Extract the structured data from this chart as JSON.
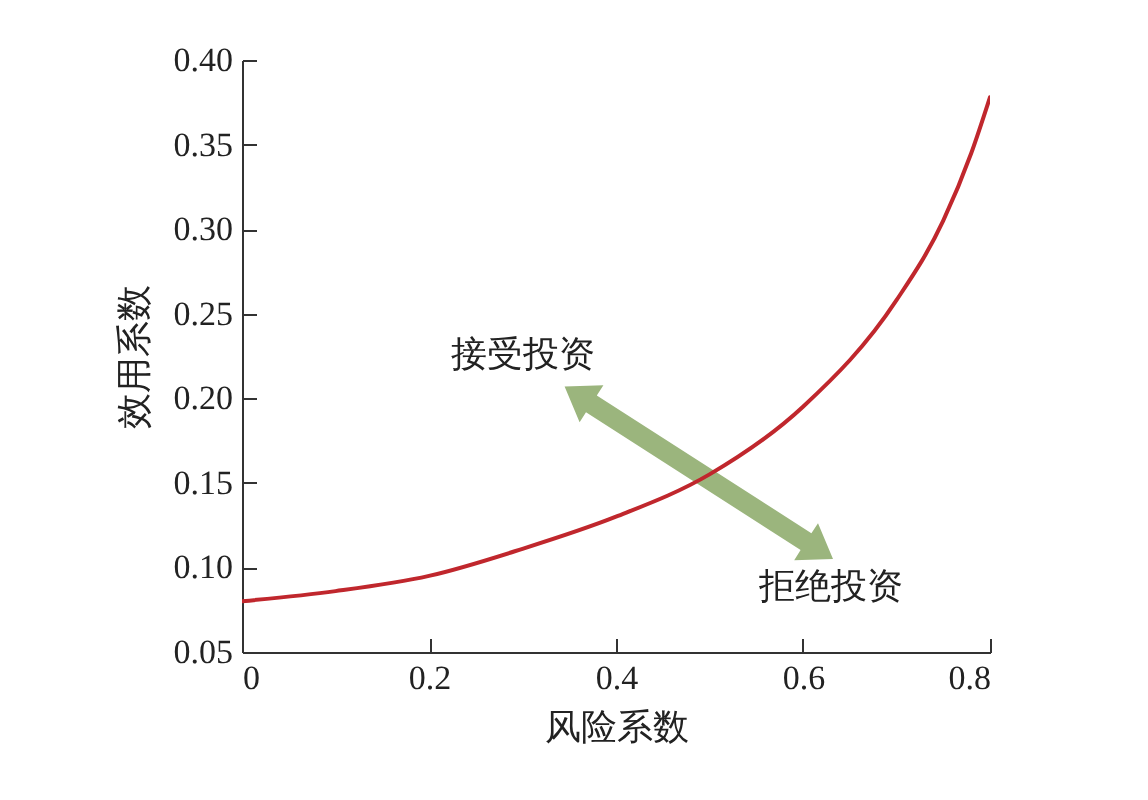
{
  "chart_data": {
    "type": "line",
    "xlabel": "风险系数",
    "ylabel": "效用系数",
    "x": [
      0,
      0.1,
      0.2,
      0.3,
      0.4,
      0.5,
      0.6,
      0.7,
      0.75,
      0.78,
      0.8
    ],
    "series": [
      {
        "color": "#c0272d",
        "values": [
          0.08,
          0.086,
          0.095,
          0.111,
          0.13,
          0.155,
          0.195,
          0.258,
          0.305,
          0.345,
          0.378
        ]
      }
    ],
    "xlim": [
      0,
      0.8
    ],
    "xticks": [
      {
        "value": 0,
        "label": "0"
      },
      0.2,
      0.4,
      0.6,
      0.8
    ],
    "ylim": [
      0.05,
      0.4
    ],
    "yticks": [
      {
        "value": 0.05,
        "label": "0.05"
      },
      {
        "value": 0.1,
        "label": "0.10"
      },
      0.15,
      {
        "value": 0.2,
        "label": "0.20"
      },
      0.25,
      {
        "value": 0.3,
        "label": "0.30"
      },
      0.35,
      {
        "value": 0.4,
        "label": "0.40"
      }
    ],
    "annotations": [
      "接受投资",
      "拒绝投资"
    ],
    "grid": false,
    "marker": "none",
    "line_style": "solid"
  }
}
